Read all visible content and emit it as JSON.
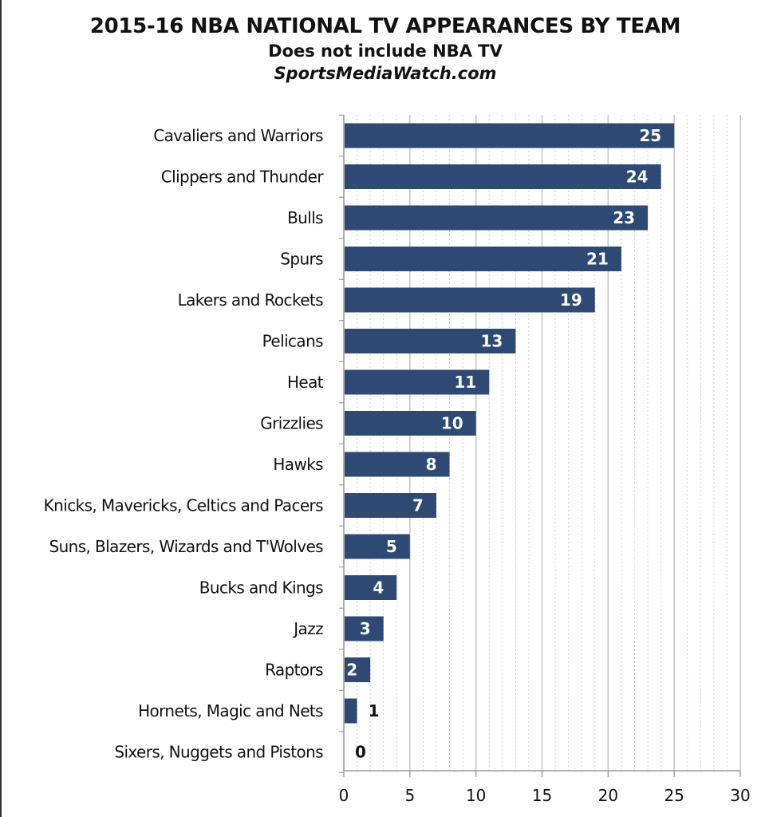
{
  "chart_data": {
    "type": "bar",
    "orientation": "horizontal",
    "title": "2015-16 NBA NATIONAL TV APPEARANCES BY TEAM",
    "subtitle": "Does not include NBA TV",
    "source": "SportsMediaWatch.com",
    "categories": [
      "Cavaliers and Warriors",
      "Clippers and Thunder",
      "Bulls",
      "Spurs",
      "Lakers and Rockets",
      "Pelicans",
      "Heat",
      "Grizzlies",
      "Hawks",
      "Knicks, Mavericks, Celtics and Pacers",
      "Suns, Blazers, Wizards and T'Wolves",
      "Bucks and Kings",
      "Jazz",
      "Raptors",
      "Hornets, Magic and Nets",
      "Sixers, Nuggets and Pistons"
    ],
    "values": [
      25,
      24,
      23,
      21,
      19,
      13,
      11,
      10,
      8,
      7,
      5,
      4,
      3,
      2,
      1,
      0
    ],
    "xlim": [
      0,
      30
    ],
    "xticks": [
      0,
      5,
      10,
      15,
      20,
      25,
      30
    ],
    "xlabel": "",
    "ylabel": "",
    "grid": true,
    "legend": "none",
    "data_labels": true,
    "colors": {
      "bar": "#2e4a74",
      "grid": "#c8c8c8",
      "axis": "#9a9a9a"
    }
  }
}
